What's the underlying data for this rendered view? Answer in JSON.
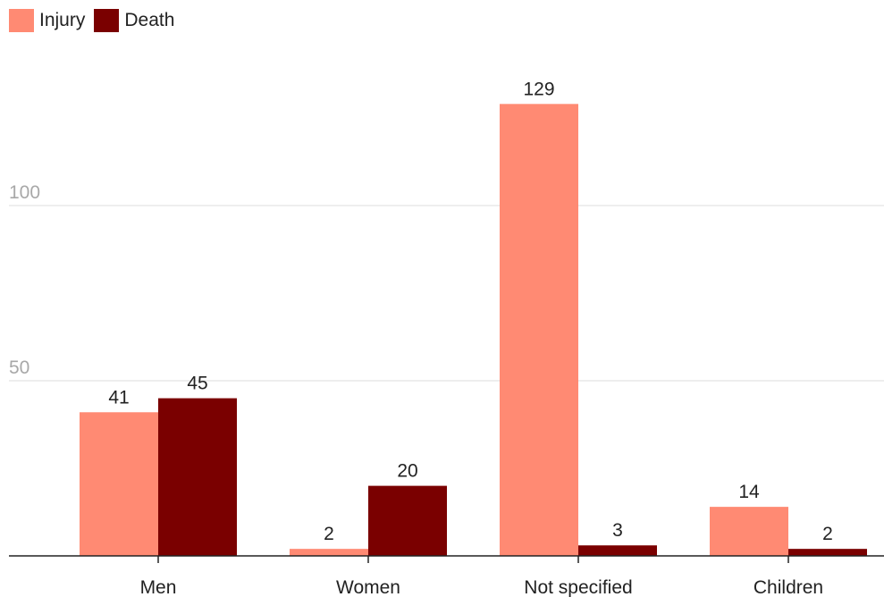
{
  "chart_data": {
    "type": "bar",
    "categories": [
      "Men",
      "Women",
      "Not specified",
      "Children"
    ],
    "series": [
      {
        "name": "Injury",
        "values": [
          41,
          2,
          129,
          14
        ],
        "color": "#ff8a73"
      },
      {
        "name": "Death",
        "values": [
          45,
          20,
          3,
          2
        ],
        "color": "#7a0000"
      }
    ],
    "yticks": [
      50,
      100
    ],
    "ylim": [
      0,
      150
    ],
    "grid": true,
    "legend_position": "top-left"
  }
}
